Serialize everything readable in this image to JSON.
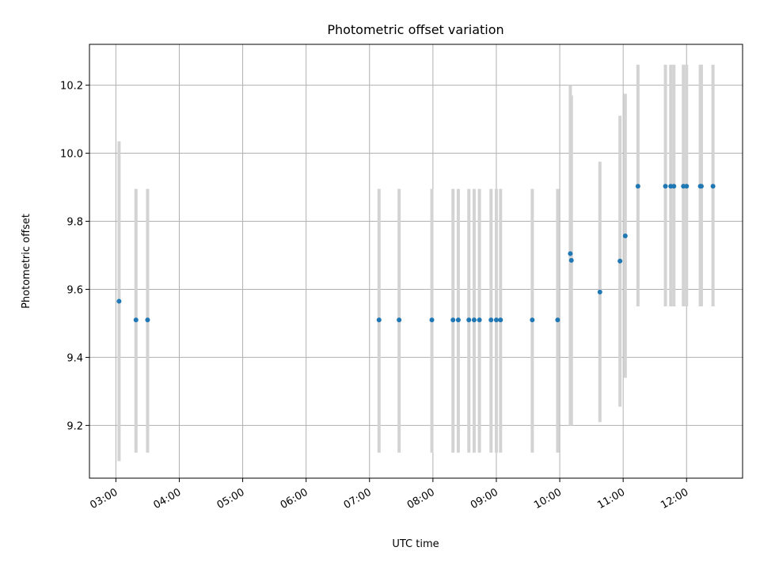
{
  "chart_data": {
    "type": "scatter",
    "title": "Photometric offset variation",
    "xlabel": "UTC time",
    "ylabel": "Photometric offset",
    "x_ticks": [
      "03:00",
      "04:00",
      "05:00",
      "06:00",
      "07:00",
      "08:00",
      "09:00",
      "10:00",
      "11:00",
      "12:00"
    ],
    "y_ticks": [
      "9.2",
      "9.4",
      "9.6",
      "9.8",
      "10.0",
      "10.2"
    ],
    "xlim": [
      "02:35",
      "12:53"
    ],
    "ylim": [
      9.045,
      10.32
    ],
    "grid": true,
    "colors": {
      "points": "#1f77b4",
      "errorbars": "#d3d3d3",
      "grid": "#b0b0b0"
    },
    "points": [
      {
        "x": "03:03",
        "y": 9.565,
        "lo": 9.095,
        "hi": 10.035
      },
      {
        "x": "03:19",
        "y": 9.51,
        "lo": 9.12,
        "hi": 9.895
      },
      {
        "x": "03:30",
        "y": 9.51,
        "lo": 9.12,
        "hi": 9.895
      },
      {
        "x": "07:09",
        "y": 9.51,
        "lo": 9.12,
        "hi": 9.895
      },
      {
        "x": "07:28",
        "y": 9.51,
        "lo": 9.12,
        "hi": 9.895
      },
      {
        "x": "07:59",
        "y": 9.51,
        "lo": 9.12,
        "hi": 9.895
      },
      {
        "x": "08:19",
        "y": 9.51,
        "lo": 9.12,
        "hi": 9.895
      },
      {
        "x": "08:24",
        "y": 9.51,
        "lo": 9.12,
        "hi": 9.895
      },
      {
        "x": "08:34",
        "y": 9.51,
        "lo": 9.12,
        "hi": 9.895
      },
      {
        "x": "08:39",
        "y": 9.51,
        "lo": 9.12,
        "hi": 9.895
      },
      {
        "x": "08:44",
        "y": 9.51,
        "lo": 9.12,
        "hi": 9.895
      },
      {
        "x": "08:55",
        "y": 9.51,
        "lo": 9.12,
        "hi": 9.895
      },
      {
        "x": "09:00",
        "y": 9.51,
        "lo": 9.12,
        "hi": 9.895
      },
      {
        "x": "09:04",
        "y": 9.51,
        "lo": 9.12,
        "hi": 9.895
      },
      {
        "x": "09:34",
        "y": 9.51,
        "lo": 9.12,
        "hi": 9.895
      },
      {
        "x": "09:58",
        "y": 9.51,
        "lo": 9.12,
        "hi": 9.895
      },
      {
        "x": "10:10",
        "y": 9.705,
        "lo": 9.2,
        "hi": 10.2
      },
      {
        "x": "10:11",
        "y": 9.685,
        "lo": 9.2,
        "hi": 10.17
      },
      {
        "x": "10:38",
        "y": 9.592,
        "lo": 9.21,
        "hi": 9.975
      },
      {
        "x": "10:57",
        "y": 9.683,
        "lo": 9.255,
        "hi": 10.11
      },
      {
        "x": "11:02",
        "y": 9.757,
        "lo": 9.34,
        "hi": 10.175
      },
      {
        "x": "11:14",
        "y": 9.903,
        "lo": 9.55,
        "hi": 10.26
      },
      {
        "x": "11:40",
        "y": 9.903,
        "lo": 9.55,
        "hi": 10.26
      },
      {
        "x": "11:45",
        "y": 9.903,
        "lo": 9.55,
        "hi": 10.26
      },
      {
        "x": "11:48",
        "y": 9.903,
        "lo": 9.55,
        "hi": 10.26
      },
      {
        "x": "11:57",
        "y": 9.903,
        "lo": 9.55,
        "hi": 10.26
      },
      {
        "x": "12:00",
        "y": 9.903,
        "lo": 9.55,
        "hi": 10.26
      },
      {
        "x": "12:13",
        "y": 9.903,
        "lo": 9.55,
        "hi": 10.26
      },
      {
        "x": "12:14",
        "y": 9.903,
        "lo": 9.55,
        "hi": 10.26
      },
      {
        "x": "12:25",
        "y": 9.903,
        "lo": 9.55,
        "hi": 10.26
      }
    ]
  }
}
